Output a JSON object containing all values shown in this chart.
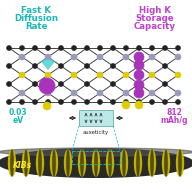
{
  "left_title_line1": "Fast K",
  "left_title_line2": "Diffusion",
  "left_title_line3": "Rate",
  "right_title_line1": "High K",
  "right_title_line2": "Storage",
  "right_title_line3": "Capacity",
  "left_value_line1": "0.03",
  "left_value_line2": "eV",
  "right_value_line1": "812",
  "right_value_line2": "mAh/g",
  "center_label": "auxeticity",
  "bottom_label": "KIBs",
  "bg_color": "#ffffff",
  "left_text_color": "#1ab8b8",
  "right_text_color": "#bb44cc",
  "center_box_color": "#99dddd",
  "atom_C_color": "#222222",
  "atom_N_color": "#9999bb",
  "atom_S_color": "#ddcc00",
  "atom_K_teal_color": "#33cccc",
  "atom_K_purple_color": "#aa33bb",
  "bond_color": "#444444",
  "ribbon_dark": "#2a2a2a",
  "ribbon_yellow": "#ccbb00",
  "ribbon_stripe_dark": "#444444"
}
